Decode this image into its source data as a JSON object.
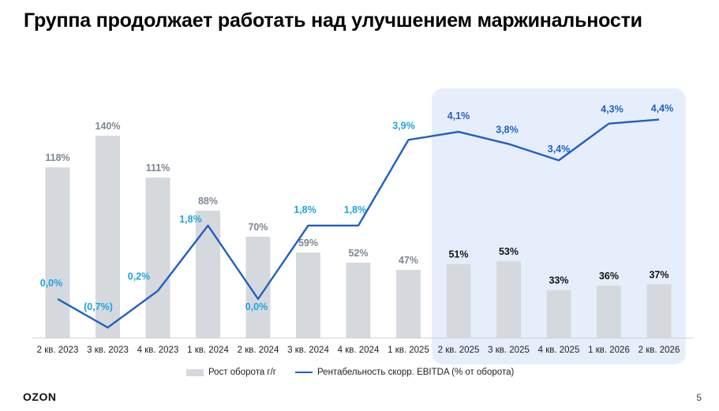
{
  "title": "Группа продолжает работать над улучшением маржинальности",
  "logo": "OZON",
  "page_number": "5",
  "colors": {
    "bar": "#d5d9de",
    "line": "#1f5fc6",
    "bar_label_actual": "#7d8792",
    "bar_label_forecast": "#111111",
    "line_label_actual": "#1fa3e0",
    "line_label_forecast": "#1f5fc6",
    "forecast_highlight": "#e6eefc"
  },
  "chart_data": {
    "type": "bar",
    "categories": [
      "2 кв. 2023",
      "3 кв. 2023",
      "4 кв. 2023",
      "1 кв. 2024",
      "2 кв. 2024",
      "3 кв. 2024",
      "4 кв. 2024",
      "1 кв. 2025",
      "2 кв. 2025",
      "3 кв. 2025",
      "4 кв. 2025",
      "1 кв. 2026",
      "2 кв. 2026"
    ],
    "forecast_from_index": 8,
    "series": [
      {
        "name": "Рост оборота г/г",
        "type": "bar",
        "values": [
          118,
          140,
          111,
          88,
          70,
          59,
          52,
          47,
          51,
          53,
          33,
          36,
          37
        ],
        "labels": [
          "118%",
          "140%",
          "111%",
          "88%",
          "70%",
          "59%",
          "52%",
          "47%",
          "51%",
          "53%",
          "33%",
          "36%",
          "37%"
        ]
      },
      {
        "name": "Рентабельность скорр. EBITDA (% от оборота)",
        "type": "line",
        "values": [
          0.0,
          -0.7,
          0.2,
          1.8,
          0.0,
          1.8,
          1.8,
          3.9,
          4.1,
          3.8,
          3.4,
          4.3,
          4.4
        ],
        "labels": [
          "0,0%",
          "(0,7%)",
          "0,2%",
          "1,8%",
          "0,0%",
          "1,8%",
          "1,8%",
          "3,9%",
          "4,1%",
          "3,8%",
          "3,4%",
          "4,3%",
          "4,4%"
        ]
      }
    ],
    "legend_position": "bottom"
  }
}
